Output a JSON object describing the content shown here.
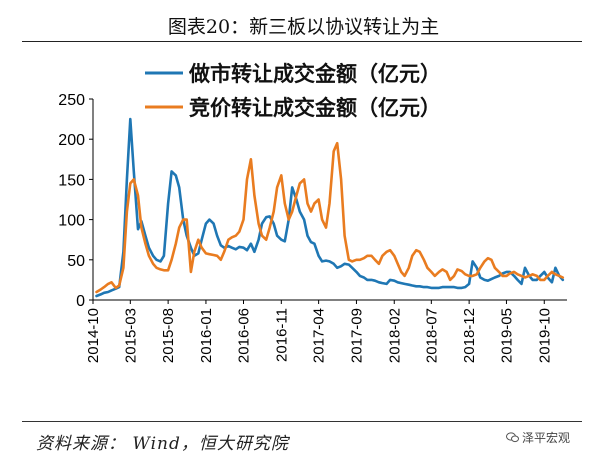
{
  "page_title": "图表20：新三板以协议转让为主",
  "source": "资料来源： Wind，恒大研究院",
  "watermark": "泽平宏观",
  "chart_data": {
    "type": "line",
    "title": "",
    "xlabel": "",
    "ylabel": "",
    "ylim": [
      0,
      250
    ],
    "yticks": [
      0,
      50,
      100,
      150,
      200,
      250
    ],
    "grid": false,
    "legend_position": "top",
    "x_tick_labels": [
      "2014-10",
      "2015-03",
      "2015-08",
      "2016-01",
      "2016-06",
      "2016-11",
      "2017-04",
      "2017-09",
      "2018-02",
      "2018-07",
      "2018-12",
      "2019-05",
      "2019-10"
    ],
    "x": [
      "2014-10-15",
      "2014-11-01",
      "2014-11-15",
      "2014-12-01",
      "2014-12-15",
      "2015-01-01",
      "2015-01-15",
      "2015-02-01",
      "2015-02-15",
      "2015-03-01",
      "2015-03-15",
      "2015-04-01",
      "2015-04-15",
      "2015-05-01",
      "2015-05-15",
      "2015-06-01",
      "2015-06-15",
      "2015-07-01",
      "2015-07-15",
      "2015-08-01",
      "2015-08-15",
      "2015-09-01",
      "2015-09-15",
      "2015-10-01",
      "2015-10-15",
      "2015-11-01",
      "2015-11-15",
      "2015-12-01",
      "2015-12-15",
      "2016-01-01",
      "2016-01-15",
      "2016-02-01",
      "2016-02-15",
      "2016-03-01",
      "2016-03-15",
      "2016-04-01",
      "2016-04-15",
      "2016-05-01",
      "2016-05-15",
      "2016-06-01",
      "2016-06-15",
      "2016-07-01",
      "2016-07-15",
      "2016-08-01",
      "2016-08-15",
      "2016-09-01",
      "2016-09-15",
      "2016-10-01",
      "2016-10-15",
      "2016-11-01",
      "2016-11-15",
      "2016-12-01",
      "2016-12-15",
      "2017-01-01",
      "2017-01-15",
      "2017-02-01",
      "2017-02-15",
      "2017-03-01",
      "2017-03-15",
      "2017-04-01",
      "2017-04-15",
      "2017-05-01",
      "2017-05-15",
      "2017-06-01",
      "2017-06-15",
      "2017-07-01",
      "2017-07-15",
      "2017-08-01",
      "2017-08-15",
      "2017-09-01",
      "2017-09-15",
      "2017-10-01",
      "2017-10-15",
      "2017-11-01",
      "2017-11-15",
      "2017-12-01",
      "2017-12-15",
      "2018-01-01",
      "2018-01-15",
      "2018-02-01",
      "2018-02-15",
      "2018-03-01",
      "2018-03-15",
      "2018-04-01",
      "2018-04-15",
      "2018-05-01",
      "2018-05-15",
      "2018-06-01",
      "2018-06-15",
      "2018-07-01",
      "2018-07-15",
      "2018-08-01",
      "2018-08-15",
      "2018-09-01",
      "2018-09-15",
      "2018-10-01",
      "2018-10-15",
      "2018-11-01",
      "2018-11-15",
      "2018-12-01",
      "2018-12-15",
      "2019-01-01",
      "2019-01-15",
      "2019-02-01",
      "2019-02-15",
      "2019-03-01",
      "2019-03-15",
      "2019-04-01",
      "2019-04-15",
      "2019-05-01",
      "2019-05-15",
      "2019-06-01",
      "2019-06-15",
      "2019-07-01",
      "2019-07-15",
      "2019-08-01",
      "2019-08-15",
      "2019-09-01",
      "2019-09-15",
      "2019-10-01",
      "2019-10-15",
      "2019-11-01",
      "2019-11-15",
      "2019-12-01",
      "2019-12-15"
    ],
    "series": [
      {
        "name": "做市转让成交金额（亿元）",
        "color": "#1f77b4",
        "values": [
          5,
          7,
          9,
          10,
          12,
          14,
          16,
          60,
          150,
          225,
          160,
          88,
          98,
          80,
          65,
          55,
          50,
          48,
          55,
          120,
          160,
          155,
          140,
          100,
          80,
          65,
          55,
          58,
          75,
          95,
          100,
          95,
          80,
          68,
          65,
          67,
          65,
          63,
          66,
          65,
          62,
          70,
          60,
          75,
          95,
          103,
          104,
          95,
          80,
          75,
          73,
          100,
          140,
          125,
          110,
          100,
          80,
          72,
          70,
          55,
          48,
          49,
          48,
          45,
          40,
          42,
          45,
          44,
          40,
          35,
          30,
          28,
          25,
          25,
          24,
          22,
          21,
          20,
          25,
          24,
          22,
          21,
          20,
          19,
          18,
          17,
          17,
          16,
          16,
          15,
          15,
          15,
          16,
          16,
          16,
          16,
          15,
          15,
          16,
          20,
          48,
          40,
          28,
          25,
          24,
          26,
          28,
          30,
          33,
          35,
          35,
          30,
          25,
          20,
          40,
          30,
          25,
          25,
          30,
          35,
          28,
          22,
          40,
          30,
          25
        ]
      },
      {
        "name": "竞价转让成交金额（亿元）",
        "color": "#e97c20",
        "values": [
          10,
          13,
          16,
          20,
          22,
          15,
          18,
          40,
          110,
          145,
          150,
          130,
          90,
          70,
          55,
          45,
          40,
          38,
          37,
          37,
          50,
          70,
          90,
          100,
          100,
          35,
          60,
          75,
          65,
          58,
          57,
          56,
          55,
          50,
          60,
          75,
          78,
          80,
          85,
          100,
          150,
          175,
          130,
          95,
          80,
          75,
          90,
          110,
          140,
          155,
          120,
          100,
          110,
          130,
          145,
          150,
          120,
          110,
          120,
          125,
          100,
          90,
          120,
          185,
          195,
          150,
          80,
          50,
          48,
          50,
          50,
          52,
          55,
          55,
          50,
          45,
          55,
          60,
          62,
          55,
          45,
          35,
          30,
          40,
          55,
          62,
          60,
          50,
          40,
          35,
          30,
          35,
          38,
          35,
          25,
          30,
          38,
          36,
          32,
          30,
          30,
          32,
          40,
          48,
          52,
          50,
          40,
          35,
          30,
          30,
          33,
          35,
          32,
          30,
          28,
          30,
          32,
          30,
          25,
          25,
          30,
          35,
          32,
          30,
          28
        ]
      }
    ]
  }
}
